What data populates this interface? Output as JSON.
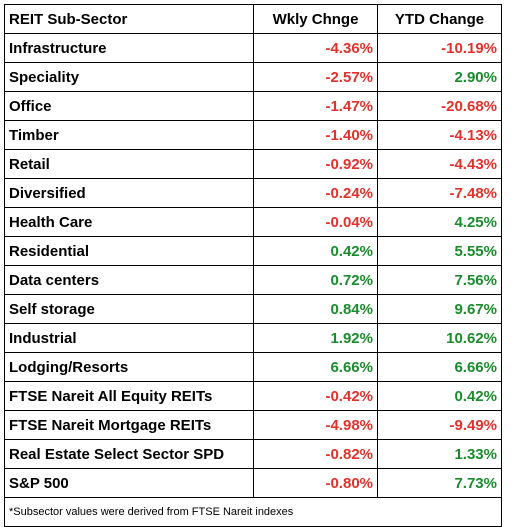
{
  "colors": {
    "negative": "#e4312b",
    "positive": "#1b8c2e",
    "text": "#000000",
    "grid": "#000000"
  },
  "header": {
    "sector": "REIT Sub-Sector",
    "weekly": "Wkly Chnge",
    "ytd": "YTD Change"
  },
  "rows": [
    {
      "name": "Infrastructure",
      "weekly": "-4.36%",
      "ytd": "-10.19%",
      "weekly_sign": "neg",
      "ytd_sign": "neg"
    },
    {
      "name": "Speciality",
      "weekly": "-2.57%",
      "ytd": "2.90%",
      "weekly_sign": "neg",
      "ytd_sign": "pos"
    },
    {
      "name": "Office",
      "weekly": "-1.47%",
      "ytd": "-20.68%",
      "weekly_sign": "neg",
      "ytd_sign": "neg"
    },
    {
      "name": "Timber",
      "weekly": "-1.40%",
      "ytd": "-4.13%",
      "weekly_sign": "neg",
      "ytd_sign": "neg"
    },
    {
      "name": "Retail",
      "weekly": "-0.92%",
      "ytd": "-4.43%",
      "weekly_sign": "neg",
      "ytd_sign": "neg"
    },
    {
      "name": "Diversified",
      "weekly": "-0.24%",
      "ytd": "-7.48%",
      "weekly_sign": "neg",
      "ytd_sign": "neg"
    },
    {
      "name": "Health Care",
      "weekly": "-0.04%",
      "ytd": "4.25%",
      "weekly_sign": "neg",
      "ytd_sign": "pos"
    },
    {
      "name": "Residential",
      "weekly": "0.42%",
      "ytd": "5.55%",
      "weekly_sign": "pos",
      "ytd_sign": "pos"
    },
    {
      "name": "Data centers",
      "weekly": "0.72%",
      "ytd": "7.56%",
      "weekly_sign": "pos",
      "ytd_sign": "pos"
    },
    {
      "name": "Self storage",
      "weekly": "0.84%",
      "ytd": "9.67%",
      "weekly_sign": "pos",
      "ytd_sign": "pos"
    },
    {
      "name": "Industrial",
      "weekly": "1.92%",
      "ytd": "10.62%",
      "weekly_sign": "pos",
      "ytd_sign": "pos"
    },
    {
      "name": "Lodging/Resorts",
      "weekly": "6.66%",
      "ytd": "6.66%",
      "weekly_sign": "pos",
      "ytd_sign": "pos"
    },
    {
      "name": "FTSE Nareit All Equity REITs",
      "weekly": "-0.42%",
      "ytd": "0.42%",
      "weekly_sign": "neg",
      "ytd_sign": "pos"
    },
    {
      "name": "FTSE Nareit Mortgage REITs",
      "weekly": "-4.98%",
      "ytd": "-9.49%",
      "weekly_sign": "neg",
      "ytd_sign": "neg"
    },
    {
      "name": "Real Estate Select Sector SPD",
      "weekly": "-0.82%",
      "ytd": "1.33%",
      "weekly_sign": "neg",
      "ytd_sign": "pos"
    },
    {
      "name": "S&P 500",
      "weekly": "-0.80%",
      "ytd": "7.73%",
      "weekly_sign": "neg",
      "ytd_sign": "pos"
    }
  ],
  "footnote": "*Subsector values were derived from FTSE Nareit indexes"
}
